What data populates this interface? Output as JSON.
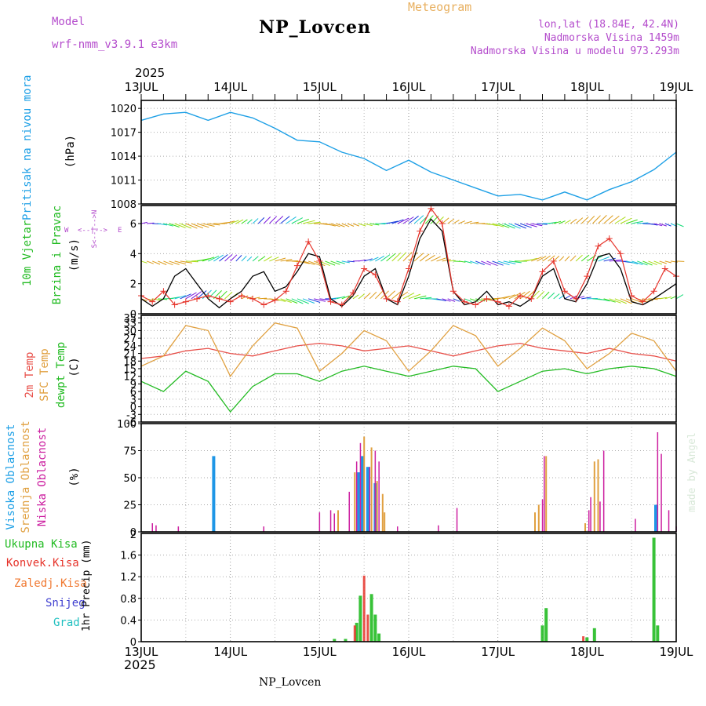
{
  "header": {
    "model_label": "Model",
    "model_name": "wrf-nmm_v3.9.1  e3km",
    "station": "NP_Lovcen",
    "product": "Meteogram",
    "coords": "lon,lat (18.84E, 42.4N)",
    "altitude": "Nadmorska Visina 1459m",
    "model_altitude": "Nadmorska Visina u modelu 973.293m"
  },
  "footer": {
    "station": "NP_Lovcen",
    "credit": "made by Angel"
  },
  "colors": {
    "pressure": "#1ea0e6",
    "wind_line": "#000000",
    "gust": "#e6332a",
    "t2m": "#e8504a",
    "tsfc": "#e0a040",
    "dewpt": "#22bb22",
    "high_cloud": "#1e96e6",
    "mid_cloud": "#e0a040",
    "low_cloud": "#cc1fa0",
    "total_precip": "#22bb22",
    "conv_precip": "#e6332a",
    "frz_precip": "#f07830",
    "snow": "#4040d0",
    "hail": "#20c0c0",
    "title_purple": "#b44ccc"
  },
  "chart_data": [
    {
      "type": "line",
      "panel": "pressure",
      "year": "2025",
      "time_labels": [
        "13JUL",
        "14JUL",
        "15JUL",
        "16JUL",
        "17JUL",
        "18JUL",
        "19JUL"
      ],
      "ylabel": "Pritisak na nivou mora",
      "unit": "(hPa)",
      "yticks": [
        1008,
        1011,
        1014,
        1017,
        1020
      ],
      "ylim": [
        1008,
        1021
      ],
      "x_hours": [
        0,
        6,
        12,
        18,
        24,
        30,
        36,
        42,
        48,
        54,
        60,
        66,
        72,
        78,
        84,
        90,
        96,
        102,
        108,
        114,
        120,
        126,
        132,
        138,
        144
      ],
      "series": [
        {
          "name": "MSLP",
          "values": [
            1018.5,
            1019.3,
            1019.5,
            1018.5,
            1019.5,
            1018.8,
            1017.5,
            1016.0,
            1015.8,
            1014.5,
            1013.7,
            1012.2,
            1013.5,
            1012.0,
            1011.0,
            1010.0,
            1009.0,
            1009.2,
            1008.5,
            1009.5,
            1008.5,
            1009.8,
            1010.8,
            1012.3,
            1014.5
          ]
        }
      ]
    },
    {
      "type": "line",
      "panel": "wind",
      "ylabel": "10m Vjetar",
      "ylabel2": "Brzina i Pravac",
      "unit": "(m/s)",
      "compass": {
        "n": "N",
        "s": "S",
        "e": "E",
        "w": "W"
      },
      "yticks": [
        0,
        2,
        4,
        6
      ],
      "ylim": [
        0,
        7.2
      ],
      "x_hours": [
        0,
        3,
        6,
        9,
        12,
        15,
        18,
        21,
        24,
        27,
        30,
        33,
        36,
        39,
        42,
        45,
        48,
        51,
        54,
        57,
        60,
        63,
        66,
        69,
        72,
        75,
        78,
        81,
        84,
        87,
        90,
        93,
        96,
        99,
        102,
        105,
        108,
        111,
        114,
        117,
        120,
        123,
        126,
        129,
        132,
        135,
        138,
        141,
        144
      ],
      "series": [
        {
          "name": "Wind speed",
          "values": [
            1.0,
            0.5,
            1.0,
            2.5,
            3.0,
            2.0,
            1.0,
            0.4,
            1.0,
            1.5,
            2.5,
            2.8,
            1.5,
            1.8,
            2.8,
            4.0,
            3.8,
            1.0,
            0.5,
            1.2,
            2.5,
            3.0,
            1.0,
            0.6,
            2.5,
            5.0,
            6.3,
            5.5,
            1.5,
            0.6,
            0.8,
            1.5,
            0.6,
            0.8,
            0.5,
            1.0,
            2.5,
            3.0,
            1.0,
            0.8,
            2.0,
            3.8,
            4.0,
            3.0,
            0.8,
            0.6,
            1.0,
            1.5,
            2.0
          ]
        },
        {
          "name": "Gusts",
          "values": [
            1.2,
            0.8,
            1.5,
            0.6,
            0.8,
            1.0,
            1.2,
            1.0,
            0.8,
            1.2,
            1.0,
            0.6,
            0.9,
            1.5,
            3.2,
            4.8,
            3.5,
            0.8,
            0.6,
            1.4,
            3.0,
            2.6,
            1.0,
            0.8,
            3.0,
            5.5,
            7.0,
            6.0,
            1.5,
            0.8,
            0.6,
            1.0,
            0.8,
            0.5,
            1.2,
            1.0,
            2.8,
            3.5,
            1.5,
            1.0,
            2.5,
            4.5,
            5.0,
            4.0,
            1.2,
            0.8,
            1.5,
            3.0,
            2.5
          ]
        }
      ],
      "arrow_rows": [
        6.0,
        3.5,
        1.0
      ]
    },
    {
      "type": "line",
      "panel": "temperature",
      "ylabels": [
        "2m Temp",
        "SFC Temp",
        "dewpt Temp"
      ],
      "unit": "(C)",
      "yticks": [
        -6,
        -3,
        0,
        3,
        6,
        9,
        12,
        15,
        18,
        21,
        24,
        27,
        30,
        33,
        35
      ],
      "ylim": [
        -6,
        36
      ],
      "x_hours": [
        0,
        6,
        12,
        18,
        24,
        30,
        36,
        42,
        48,
        54,
        60,
        66,
        72,
        78,
        84,
        90,
        96,
        102,
        108,
        114,
        120,
        126,
        132,
        138,
        144
      ],
      "series": [
        {
          "name": "2m Temp",
          "values": [
            19,
            20,
            22,
            23,
            21,
            20,
            22,
            24,
            25,
            24,
            22,
            23,
            24,
            22,
            20,
            22,
            24,
            25,
            23,
            22,
            21,
            23,
            21,
            20,
            18
          ]
        },
        {
          "name": "SFC Temp",
          "values": [
            16,
            20,
            32,
            30,
            12,
            24,
            33,
            31,
            14,
            21,
            30,
            26,
            14,
            22,
            32,
            28,
            16,
            23,
            31,
            26,
            15,
            21,
            29,
            26,
            14
          ]
        },
        {
          "name": "dewpt Temp",
          "values": [
            10,
            6,
            14,
            10,
            -2,
            8,
            13,
            13,
            10,
            14,
            16,
            14,
            12,
            14,
            16,
            15,
            6,
            10,
            14,
            15,
            13,
            15,
            16,
            15,
            12
          ]
        }
      ]
    },
    {
      "type": "bar",
      "panel": "cloud",
      "ylabels": [
        "Visoka Oblacnost",
        "Srednja Oblacnost",
        "Niska Oblacnost"
      ],
      "unit": "(%)",
      "yticks": [
        0,
        25,
        50,
        75,
        100
      ],
      "ylim": [
        0,
        100
      ],
      "series": [
        {
          "name": "Visoka",
          "bars": [
            {
              "h": 19.5,
              "v": 70
            },
            {
              "h": 58.5,
              "v": 55
            },
            {
              "h": 59.5,
              "v": 70
            },
            {
              "h": 61,
              "v": 60
            },
            {
              "h": 63,
              "v": 45
            },
            {
              "h": 138.5,
              "v": 25
            }
          ]
        },
        {
          "name": "Srednja",
          "bars": [
            {
              "h": 53,
              "v": 20
            },
            {
              "h": 57.5,
              "v": 55
            },
            {
              "h": 60,
              "v": 88
            },
            {
              "h": 62,
              "v": 78
            },
            {
              "h": 63.5,
              "v": 47
            },
            {
              "h": 65,
              "v": 35
            },
            {
              "h": 65.5,
              "v": 18
            },
            {
              "h": 106,
              "v": 18
            },
            {
              "h": 107,
              "v": 25
            },
            {
              "h": 109,
              "v": 70
            },
            {
              "h": 119.5,
              "v": 8
            },
            {
              "h": 122,
              "v": 65
            },
            {
              "h": 123,
              "v": 67
            }
          ]
        },
        {
          "name": "Niska",
          "bars": [
            {
              "h": 3,
              "v": 8
            },
            {
              "h": 4,
              "v": 6
            },
            {
              "h": 10,
              "v": 5
            },
            {
              "h": 33,
              "v": 5
            },
            {
              "h": 48,
              "v": 18
            },
            {
              "h": 51,
              "v": 20
            },
            {
              "h": 52,
              "v": 17
            },
            {
              "h": 56,
              "v": 37
            },
            {
              "h": 58,
              "v": 65
            },
            {
              "h": 59,
              "v": 82
            },
            {
              "h": 61.5,
              "v": 60
            },
            {
              "h": 63,
              "v": 75
            },
            {
              "h": 64,
              "v": 65
            },
            {
              "h": 69,
              "v": 5
            },
            {
              "h": 80,
              "v": 6
            },
            {
              "h": 85,
              "v": 22
            },
            {
              "h": 108,
              "v": 30
            },
            {
              "h": 108.5,
              "v": 70
            },
            {
              "h": 120.5,
              "v": 20
            },
            {
              "h": 121,
              "v": 32
            },
            {
              "h": 123.5,
              "v": 28
            },
            {
              "h": 124.5,
              "v": 75
            },
            {
              "h": 133,
              "v": 12
            },
            {
              "h": 139,
              "v": 92
            },
            {
              "h": 140,
              "v": 72
            },
            {
              "h": 142,
              "v": 20
            },
            {
              "h": 144,
              "v": 5
            }
          ]
        }
      ]
    },
    {
      "type": "bar",
      "panel": "precip",
      "ylabels": [
        "Ukupna Kisa",
        "Konvek.Kisa",
        "Zaledj.Kisa",
        "Snijeg",
        "Grad"
      ],
      "unit": "1hr Precip (mm)",
      "yticks": [
        0,
        0.4,
        0.8,
        1.2,
        1.6
      ],
      "ytick_labels": [
        "0",
        "0.4",
        "0.8",
        "1.2",
        "1.6"
      ],
      "top_tick": "2",
      "ylim": [
        0,
        2.0
      ],
      "series": [
        {
          "name": "Ukupna Kisa",
          "bars": [
            {
              "h": 58,
              "v": 0.35
            },
            {
              "h": 59,
              "v": 0.85
            },
            {
              "h": 62,
              "v": 0.88
            },
            {
              "h": 63,
              "v": 0.5
            },
            {
              "h": 64,
              "v": 0.15
            },
            {
              "h": 109,
              "v": 0.62
            },
            {
              "h": 108,
              "v": 0.3
            },
            {
              "h": 138,
              "v": 1.92
            },
            {
              "h": 139,
              "v": 0.3
            },
            {
              "h": 120,
              "v": 0.08
            },
            {
              "h": 122,
              "v": 0.25
            },
            {
              "h": 55,
              "v": 0.05
            },
            {
              "h": 52,
              "v": 0.05
            }
          ]
        },
        {
          "name": "Konvek.Kisa",
          "bars": [
            {
              "h": 57.5,
              "v": 0.3
            },
            {
              "h": 60,
              "v": 1.22
            },
            {
              "h": 61,
              "v": 0.5
            },
            {
              "h": 119,
              "v": 0.1
            }
          ]
        }
      ]
    }
  ]
}
